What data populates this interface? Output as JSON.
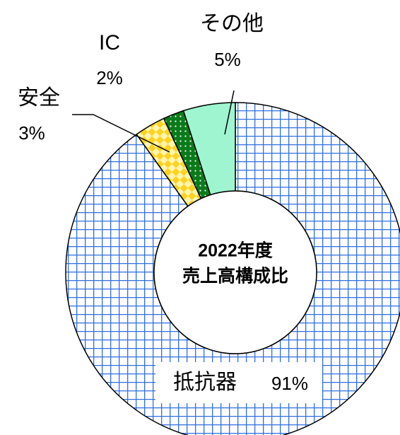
{
  "chart_data": {
    "type": "donut",
    "center_label": [
      "2022年度",
      "売上高構成比"
    ],
    "categories": [
      "抵抗器",
      "安全",
      "IC",
      "その他"
    ],
    "values": [
      91,
      3,
      2,
      5
    ],
    "value_labels": [
      "91%",
      "3%",
      "2%",
      "5%"
    ],
    "colors": [
      "#2f6fe0",
      "#ffd21f",
      "#0a7a1a",
      "#9ff5cf"
    ]
  }
}
